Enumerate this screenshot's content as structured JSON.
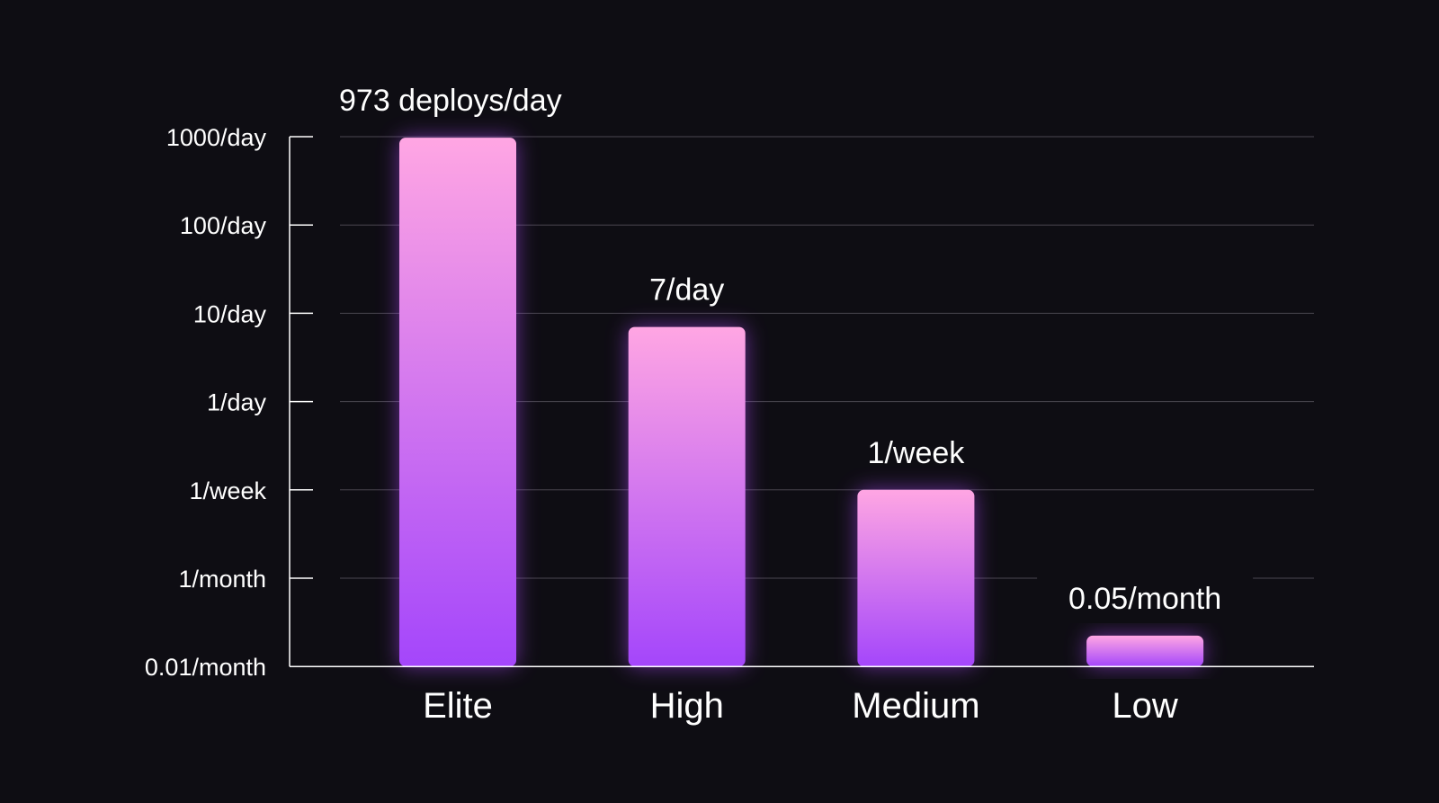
{
  "chart_data": {
    "type": "bar",
    "scale": "log",
    "unit": "deploys per day",
    "categories": [
      "Elite",
      "High",
      "Medium",
      "Low"
    ],
    "values": [
      973,
      7,
      0.142857,
      0.0016667
    ],
    "data_labels": [
      "973 deploys/day",
      "7/day",
      "1/week",
      "0.05/month"
    ],
    "y_ticks": [
      {
        "value": 1000,
        "label": "1000/day"
      },
      {
        "value": 100,
        "label": "100/day"
      },
      {
        "value": 10,
        "label": "10/day"
      },
      {
        "value": 1,
        "label": "1/day"
      },
      {
        "value": 0.142857,
        "label": "1/week"
      },
      {
        "value": 0.033333,
        "label": "1/month"
      },
      {
        "value": 0.00033333,
        "label": "0.01/month"
      }
    ],
    "grid": true,
    "legend": "none",
    "colors": {
      "background": "#0e0d13",
      "bar_top": "#ffa6e3",
      "bar_bottom": "#a446fb",
      "glow": "#b04cff",
      "axis": "#ffffff",
      "grid": "#4a4750",
      "text": "#ffffff"
    }
  }
}
